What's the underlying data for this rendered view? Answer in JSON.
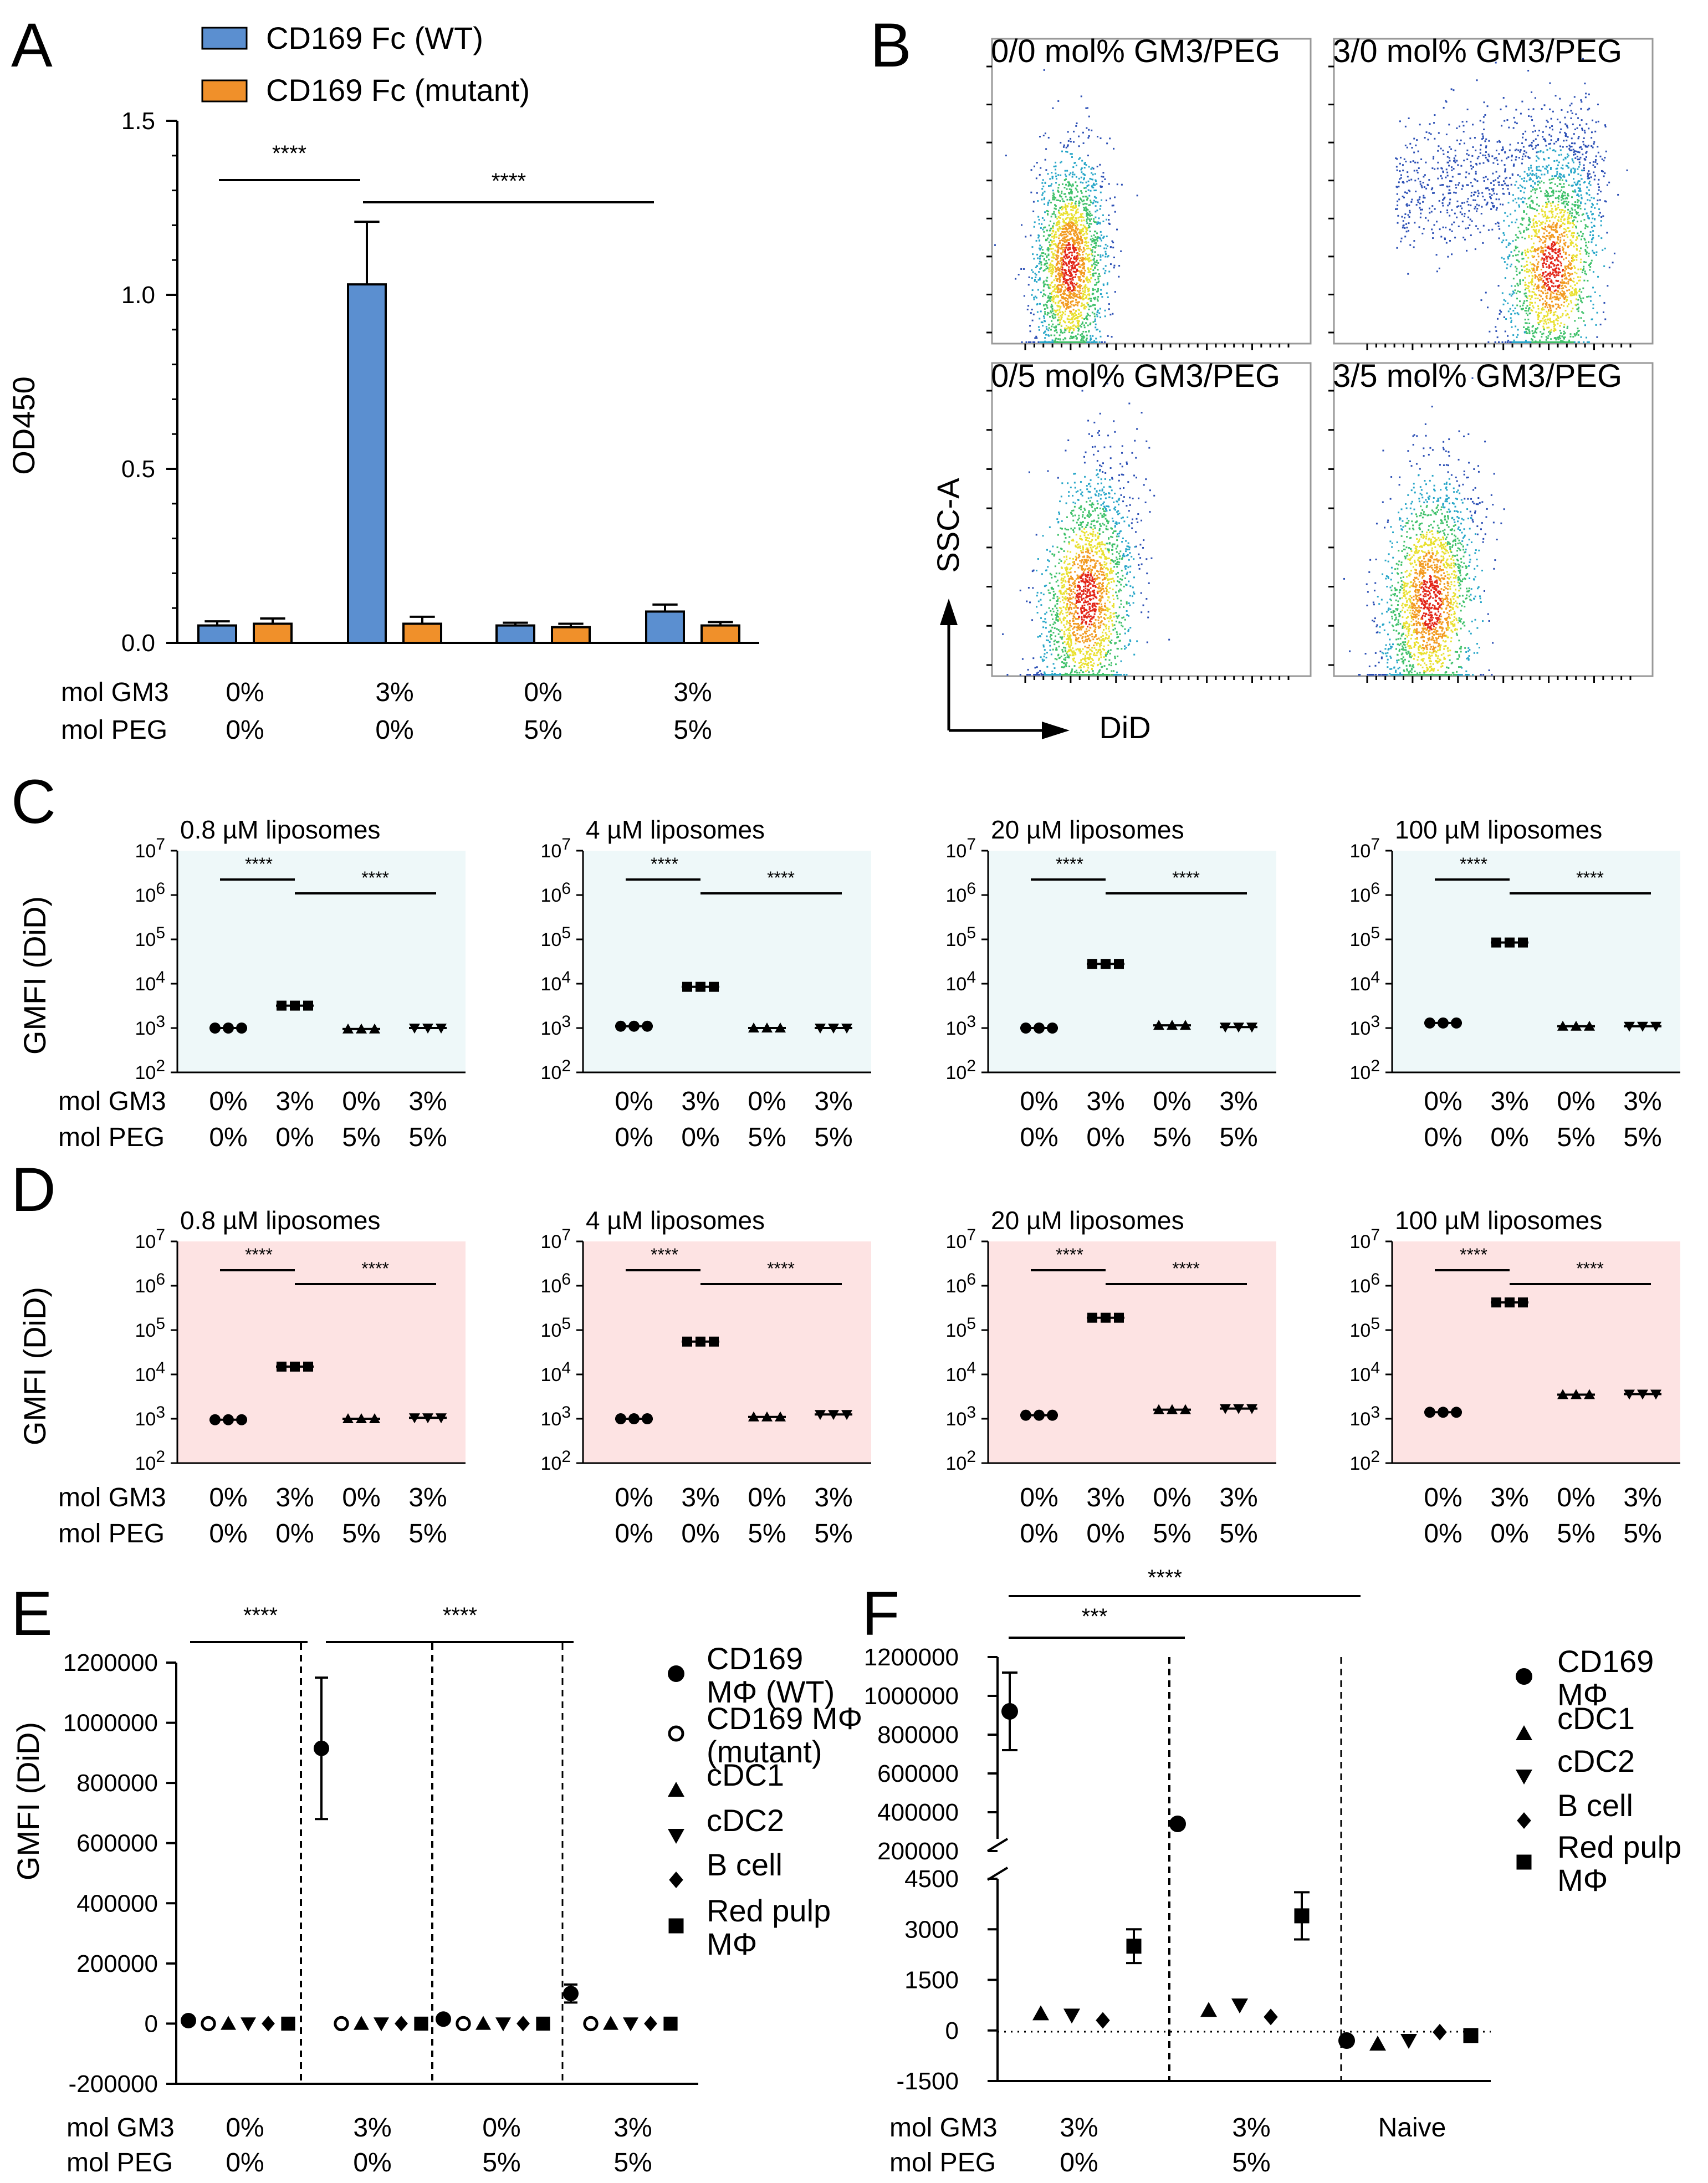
{
  "panels": {
    "A": {
      "label": "A",
      "ylabel": "OD450",
      "yticks": [
        "0.0",
        "0.5",
        "1.0",
        "1.5"
      ],
      "legend": [
        {
          "name": "CD169 Fc (WT)",
          "color": "#5b8fd0"
        },
        {
          "name": "CD169 Fc (mutant)",
          "color": "#f0902a"
        }
      ],
      "row_labels": [
        "mol GM3",
        "mol PEG"
      ],
      "groups": [
        {
          "gm3": "0%",
          "peg": "0%"
        },
        {
          "gm3": "3%",
          "peg": "0%"
        },
        {
          "gm3": "0%",
          "peg": "5%"
        },
        {
          "gm3": "3%",
          "peg": "5%"
        }
      ],
      "sig": [
        "****",
        "****"
      ]
    },
    "B": {
      "label": "B",
      "ylabel": "SSC-A",
      "xlabel": "DiD",
      "plots": [
        "0/0 mol% GM3/PEG",
        "3/0 mol% GM3/PEG",
        "0/5 mol% GM3/PEG",
        "3/5 mol% GM3/PEG"
      ]
    },
    "C": {
      "label": "C",
      "ylabel": "GMFI (DiD)",
      "titles": [
        "0.8 µM liposomes",
        "4 µM liposomes",
        "20 µM liposomes",
        "100 µM liposomes"
      ],
      "row_labels": [
        "mol GM3",
        "mol PEG"
      ],
      "gm3": [
        "0%",
        "3%",
        "0%",
        "3%"
      ],
      "peg": [
        "0%",
        "0%",
        "5%",
        "5%"
      ],
      "sig": "****"
    },
    "D": {
      "label": "D",
      "ylabel": "GMFI (DiD)",
      "titles": [
        "0.8 µM liposomes",
        "4 µM liposomes",
        "20 µM liposomes",
        "100 µM liposomes"
      ],
      "row_labels": [
        "mol GM3",
        "mol PEG"
      ],
      "gm3": [
        "0%",
        "3%",
        "0%",
        "3%"
      ],
      "peg": [
        "0%",
        "0%",
        "5%",
        "5%"
      ],
      "sig": "****"
    },
    "E": {
      "label": "E",
      "ylabel": "GMFI (DiD)",
      "yticks": [
        "-200000",
        "0",
        "200000",
        "400000",
        "600000",
        "800000",
        "1000000",
        "1200000"
      ],
      "row_labels": [
        "mol GM3",
        "mol PEG"
      ],
      "groups": [
        {
          "gm3": "0%",
          "peg": "0%"
        },
        {
          "gm3": "3%",
          "peg": "0%"
        },
        {
          "gm3": "0%",
          "peg": "5%"
        },
        {
          "gm3": "3%",
          "peg": "5%"
        }
      ],
      "legend": [
        {
          "line1": "CD169",
          "line2": "MΦ (WT)",
          "shape": "circle"
        },
        {
          "line1": "CD169 MΦ",
          "line2": "(mutant)",
          "shape": "open-circle"
        },
        {
          "line1": "cDC1",
          "line2": "",
          "shape": "triangle-up"
        },
        {
          "line1": "cDC2",
          "line2": "",
          "shape": "triangle-down"
        },
        {
          "line1": "B cell",
          "line2": "",
          "shape": "diamond"
        },
        {
          "line1": "Red pulp",
          "line2": "MΦ",
          "shape": "square"
        }
      ],
      "sig": [
        "****",
        "****"
      ]
    },
    "F": {
      "label": "F",
      "yticks_upper": [
        "200000",
        "400000",
        "600000",
        "800000",
        "1000000",
        "1200000"
      ],
      "yticks_lower": [
        "-1500",
        "0",
        "1500",
        "3000",
        "4500"
      ],
      "row_labels": [
        "mol GM3",
        "mol PEG"
      ],
      "groups": [
        {
          "gm3": "3%",
          "peg": "0%"
        },
        {
          "gm3": "3%",
          "peg": "5%"
        },
        {
          "gm3": "Naive",
          "peg": ""
        }
      ],
      "legend": [
        {
          "line1": "CD169",
          "line2": "MΦ",
          "shape": "circle"
        },
        {
          "line1": "cDC1",
          "line2": "",
          "shape": "triangle-up"
        },
        {
          "line1": "cDC2",
          "line2": "",
          "shape": "triangle-down"
        },
        {
          "line1": "B cell",
          "line2": "",
          "shape": "diamond"
        },
        {
          "line1": "Red pulp",
          "line2": "MΦ",
          "shape": "square"
        }
      ],
      "sig": [
        "***",
        "****"
      ]
    }
  },
  "chart_data": [
    {
      "panel": "A",
      "type": "bar",
      "ylabel": "OD450",
      "ylim": [
        0,
        1.5
      ],
      "categories": [
        "0% GM3 / 0% PEG",
        "3% GM3 / 0% PEG",
        "0% GM3 / 5% PEG",
        "3% GM3 / 5% PEG"
      ],
      "series": [
        {
          "name": "CD169 Fc (WT)",
          "values": [
            0.05,
            1.03,
            0.05,
            0.09
          ],
          "err": [
            0.012,
            0.18,
            0.008,
            0.02
          ]
        },
        {
          "name": "CD169 Fc (mutant)",
          "values": [
            0.055,
            0.055,
            0.045,
            0.05
          ],
          "err": [
            0.015,
            0.02,
            0.01,
            0.01
          ]
        }
      ]
    },
    {
      "panel": "C",
      "type": "scatter",
      "yscale": "log",
      "ylim": [
        100,
        10000000
      ],
      "categories": [
        "0% GM3 / 0% PEG",
        "3% GM3 / 0% PEG",
        "0% GM3 / 5% PEG",
        "3% GM3 / 5% PEG"
      ],
      "subplots": [
        {
          "title": "0.8 µM liposomes",
          "values": [
            1000,
            3200,
            950,
            1000
          ]
        },
        {
          "title": "4 µM liposomes",
          "values": [
            1100,
            8500,
            1000,
            1000
          ]
        },
        {
          "title": "20 µM liposomes",
          "values": [
            1000,
            28000,
            1150,
            1050
          ]
        },
        {
          "title": "100 µM liposomes",
          "values": [
            1300,
            85000,
            1100,
            1100
          ]
        }
      ]
    },
    {
      "panel": "D",
      "type": "scatter",
      "yscale": "log",
      "ylim": [
        100,
        10000000
      ],
      "categories": [
        "0% GM3 / 0% PEG",
        "3% GM3 / 0% PEG",
        "0% GM3 / 5% PEG",
        "3% GM3 / 5% PEG"
      ],
      "subplots": [
        {
          "title": "0.8 µM liposomes",
          "values": [
            950,
            15000,
            1000,
            1050
          ]
        },
        {
          "title": "4 µM liposomes",
          "values": [
            1000,
            55000,
            1100,
            1250
          ]
        },
        {
          "title": "20 µM liposomes",
          "values": [
            1200,
            190000,
            1600,
            1700
          ]
        },
        {
          "title": "100 µM liposomes",
          "values": [
            1400,
            420000,
            3500,
            3600
          ]
        }
      ]
    },
    {
      "panel": "E",
      "type": "scatter",
      "ylabel": "GMFI (DiD)",
      "ylim": [
        -200000,
        1200000
      ],
      "groups": [
        "0% GM3 / 0% PEG",
        "3% GM3 / 0% PEG",
        "0% GM3 / 5% PEG",
        "3% GM3 / 5% PEG"
      ],
      "series": [
        {
          "name": "CD169 MΦ (WT)",
          "values": [
            10000,
            915000,
            15000,
            100000
          ],
          "err": [
            5000,
            235000,
            5000,
            30000
          ]
        },
        {
          "name": "CD169 MΦ (mutant)",
          "values": [
            0,
            0,
            0,
            0
          ]
        },
        {
          "name": "cDC1",
          "values": [
            0,
            0,
            0,
            0
          ]
        },
        {
          "name": "cDC2",
          "values": [
            0,
            0,
            0,
            0
          ]
        },
        {
          "name": "B cell",
          "values": [
            0,
            0,
            0,
            0
          ]
        },
        {
          "name": "Red pulp MΦ",
          "values": [
            0,
            0,
            0,
            0
          ]
        }
      ]
    },
    {
      "panel": "F",
      "type": "scatter",
      "ylim_lower": [
        -1500,
        4500
      ],
      "ylim_upper": [
        200000,
        1200000
      ],
      "groups": [
        "3% GM3 / 0% PEG",
        "3% GM3 / 5% PEG",
        "Naive"
      ],
      "series": [
        {
          "name": "CD169 MΦ",
          "values": [
            920000,
            340000,
            -300
          ],
          "err": [
            200000,
            0,
            0
          ]
        },
        {
          "name": "cDC1",
          "values": [
            500,
            600,
            -400
          ]
        },
        {
          "name": "cDC2",
          "values": [
            450,
            750,
            -300
          ]
        },
        {
          "name": "B cell",
          "values": [
            300,
            400,
            -50
          ]
        },
        {
          "name": "Red pulp MΦ",
          "values": [
            2500,
            3400,
            -150
          ],
          "err": [
            500,
            700,
            0
          ]
        }
      ]
    }
  ]
}
